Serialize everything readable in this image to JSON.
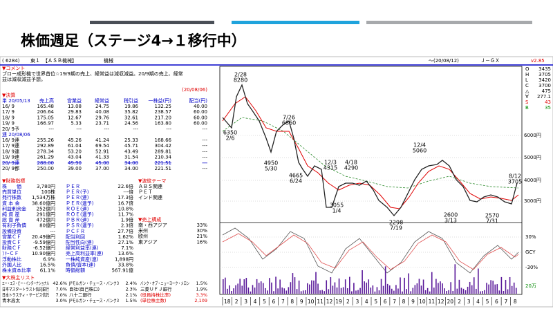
{
  "title": "株価週足（ステージ4→１移行中）",
  "header": {
    "code": "( 6284)",
    "market": "東１",
    "name": "【ＡＳＢ機械】",
    "sector": "機械",
    "date": "〜(20/08/12)",
    "source": "Ｊ－ＧＸ",
    "version": "v2.85"
  },
  "comment": {
    "heading": "▼コメント",
    "lines": [
      "ブロー成形機で世界首位☆19/9期の売上、経常益は減収減益。20/9期の売上、経常",
      "益は減収減益予想。"
    ]
  },
  "results": {
    "heading": "▼決算",
    "date": "(20/08/06)",
    "columns": [
      "単 20/05/13",
      "売上高",
      "営業益",
      "経常益",
      "税引益",
      "一株益(円)",
      "配当(円)"
    ],
    "rows": [
      [
        "16/ 9",
        "165.48",
        "13.08",
        "24.75",
        "19.86",
        "132.25",
        "40.00"
      ],
      [
        "17/ 9",
        "206.64",
        "29.83",
        "40.08",
        "35.82",
        "238.57",
        "60.00"
      ],
      [
        "18/ 9",
        "175.05",
        "12.67",
        "29.76",
        "32.61",
        "217.20",
        "60.00"
      ],
      [
        "19/ 9",
        "166.97",
        "5.33",
        "23.71",
        "24.56",
        "163.80",
        "60.00"
      ],
      [
        "20/ 9予",
        "---",
        "---",
        "---",
        "---",
        "---",
        "---"
      ]
    ],
    "consolidated_label": "連 20/08/06",
    "consolidated_rows": [
      [
        "16/ 9連",
        "255.26",
        "45.26",
        "41.24",
        "25.33",
        "168.66",
        "---"
      ],
      [
        "17/ 9連",
        "292.89",
        "61.04",
        "69.54",
        "45.71",
        "304.42",
        "---"
      ],
      [
        "18/ 9連",
        "278.34",
        "53.20",
        "52.91",
        "43.49",
        "289.81",
        "---"
      ],
      [
        "19/ 9連",
        "261.29",
        "43.04",
        "41.33",
        "31.54",
        "210.34",
        "---"
      ],
      [
        "20/ 9連",
        "288.00",
        "49.90",
        "45.00",
        "34.00",
        "221.51",
        "---"
      ],
      [
        "20/ 9都",
        "250.00",
        "39.00",
        "37.00",
        "34.00",
        "221.51",
        "---"
      ]
    ]
  },
  "financials": {
    "heading": "▼財務指標",
    "rows": [
      [
        "株　　価",
        "3,780円",
        "ＰＥＲ",
        "22.6倍"
      ],
      [
        "売買単位",
        "100株",
        "ＰＥＲ(予)",
        "---倍"
      ],
      [
        "発行株数",
        "1,534万株",
        "ＰＥＲ(連)",
        "17.3倍"
      ],
      [
        "資 本 金",
        "38.60億円",
        "ＰＥＲ(連予)",
        "16.7倍"
      ],
      [
        "利益剰余金",
        "252億円",
        "ＲＯＥ(連)",
        "10.8%"
      ],
      [
        "純 資 産",
        "291億円",
        "ＲＯＥ(連予)",
        "11.7%"
      ],
      [
        "総 資 産",
        "472億円",
        "ＰＢＲ(連)",
        "1.9倍"
      ],
      [
        "有利子負債",
        "80億円",
        "ＰＳＲ(連予)",
        "2.3倍"
      ],
      [
        "設備投資",
        "---",
        "ＰＣＦＲ",
        "27.7倍"
      ],
      [
        "営業ＣＦ",
        "20.49億円",
        "配当利回",
        "1.62%"
      ],
      [
        "投資ＣＦ",
        "-9.59億円",
        "配当性向(連)",
        "27.1%"
      ],
      [
        "財務ＣＦ",
        "-6.52億円",
        "経常利益率(連)",
        "7.1%"
      ],
      [
        "ﾌﾘｰＣＦ",
        "10.90億円",
        "売上高利益率(連)",
        "13.6%"
      ],
      [
        "浮動株比",
        "6.9%",
        "一株純資産(連)",
        "1,898円"
      ],
      [
        "外国人比",
        "16.5%",
        "負債/資本(連)",
        "33.8%"
      ],
      [
        "株主資本比率",
        "61.1%",
        "時価総額",
        "567.91億"
      ]
    ]
  },
  "themes": {
    "heading": "▼波紋テーマ",
    "items": [
      "ＡＢＳ関連",
      "ＰＥＴ",
      "インド関連"
    ]
  },
  "sales_mix": {
    "heading": "▼売上構成",
    "rows": [
      [
        "南・西アジア",
        "33%"
      ],
      [
        "米州",
        "30%"
      ],
      [
        "欧州",
        "21%"
      ],
      [
        "東アジア",
        "16%"
      ]
    ]
  },
  "shareholders": {
    "heading": "▼大株主リスト",
    "rows": [
      [
        "エー・エス・ビー・インターナショナル",
        "42.6%",
        "JPモルガン・チェース・バンク3",
        "2.4%",
        "バンク・オブ・ニューヨーク・メロン",
        "1.5%"
      ],
      [
        "日本マスタートラスト信託銀行",
        "7.0%",
        "自社(自己株口)",
        "2.3%",
        "三菱ＵＦＪ銀行",
        "1.9%"
      ],
      [
        "日本トラスティ・サービス信託",
        "7.0%",
        "八十二銀行",
        "2.1%",
        "(役員持株比率)",
        "3.3%"
      ],
      [
        "青木高太",
        "3.0%",
        "JPモルガン・チェース・バンク3",
        "1.5%",
        "(単位株主数)",
        "2,109"
      ]
    ]
  },
  "chart": {
    "ohlc": [
      [
        "O",
        "3435"
      ],
      [
        "H",
        "3705"
      ],
      [
        "L",
        "3420"
      ],
      [
        "C",
        "3700"
      ],
      [
        "△",
        "475"
      ],
      [
        "∀",
        "277.1"
      ],
      [
        "S",
        "43"
      ],
      [
        "B",
        "35"
      ]
    ],
    "price_axis": [
      "6000円",
      "5000円",
      "4000円",
      "3000円"
    ],
    "oscillator_axis": [
      "30%",
      "GCY",
      "-30%"
    ],
    "volume_axis": "20万",
    "annotations": [
      [
        "2/28",
        "8280"
      ],
      [
        "6350",
        "2/6"
      ],
      [
        "7/26",
        "6860"
      ],
      [
        "4950",
        "5/30"
      ],
      [
        "4665",
        "6/24"
      ],
      [
        "12/3",
        "4315"
      ],
      [
        "3055",
        "1/4"
      ],
      [
        "4/18",
        "4290"
      ],
      [
        "2298",
        "7/19"
      ],
      [
        "12/4",
        "5060"
      ],
      [
        "2600",
        "3/13"
      ],
      [
        "2570",
        "7/31"
      ],
      [
        "8/12",
        "3705"
      ]
    ],
    "months": [
      "18",
      "2",
      "3",
      "4",
      "5",
      "6",
      "7",
      "8",
      "9",
      "10",
      "11",
      "12",
      "19",
      "2",
      "3",
      "4",
      "5",
      "6",
      "7",
      "8",
      "9",
      "10",
      "11",
      "12",
      "20",
      "2",
      "3",
      "4",
      "5",
      "6",
      "7",
      "8"
    ]
  }
}
